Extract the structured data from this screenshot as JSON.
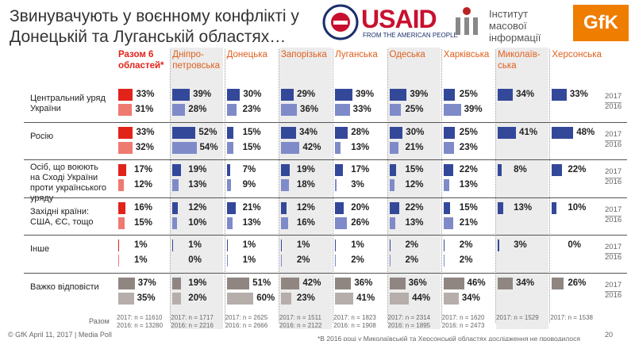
{
  "header": {
    "title": "Звинувачують у воєнному конфлікті у Донецькій та Луганській областях…",
    "usaid": "USAID",
    "usaid_tagline": "FROM THE AMERICAN PEOPLE",
    "imi": "Інститут масової інформації",
    "gfk": "GfK"
  },
  "colors": {
    "total": [
      "#e2231a",
      "#ef7a70"
    ],
    "region": [
      "#34489a",
      "#7f8bc9"
    ],
    "neutral": [
      "#8f8682",
      "#b5aeaa"
    ]
  },
  "years": [
    "2017",
    "2016"
  ],
  "sample_label": "Разом",
  "columns": [
    {
      "name": "Разом 6 областей*",
      "n_2017": "2017: n = 11610",
      "n_2016": "2016: n = 13280"
    },
    {
      "name": "Дніпро-петровська",
      "n_2017": "2017: n = 1717",
      "n_2016": "2016: n = 2216"
    },
    {
      "name": "Донецька",
      "n_2017": "2017: n = 2625",
      "n_2016": "2016: n = 2666"
    },
    {
      "name": "Запорізька",
      "n_2017": "2017: n = 1511",
      "n_2016": "2016: n = 2122"
    },
    {
      "name": "Луганська",
      "n_2017": "2017: n = 1823",
      "n_2016": "2016: n = 1908"
    },
    {
      "name": "Одеська",
      "n_2017": "2017: n = 2314",
      "n_2016": "2016: n = 1895"
    },
    {
      "name": "Харківська",
      "n_2017": "2017: n = 1620",
      "n_2016": "2016: n = 2473"
    },
    {
      "name": "Миколаїв-ська",
      "n_2017": "2017: n = 1529",
      "n_2016": null
    },
    {
      "name": "Херсонська",
      "n_2017": "2017: n = 1538",
      "n_2016": null
    }
  ],
  "rows": [
    {
      "label": "Центральний уряд України",
      "neutral": false,
      "v2017": [
        33,
        39,
        30,
        29,
        39,
        39,
        25,
        34,
        33
      ],
      "l2017": [
        "33%",
        "39%",
        "30%",
        "29%",
        "39%",
        "39%",
        "25%",
        "34%",
        "33%"
      ],
      "v2016": [
        31,
        28,
        23,
        36,
        33,
        25,
        39,
        null,
        null
      ],
      "l2016": [
        "31%",
        "28%",
        "23%",
        "36%",
        "33%",
        "25%",
        "39%",
        null,
        null
      ]
    },
    {
      "label": "Росію",
      "neutral": false,
      "v2017": [
        33,
        52,
        15,
        34,
        28,
        30,
        25,
        41,
        48
      ],
      "l2017": [
        "33%",
        "52%",
        "15%",
        "34%",
        "28%",
        "30%",
        "25%",
        "41%",
        "48%"
      ],
      "v2016": [
        32,
        54,
        15,
        42,
        13,
        21,
        23,
        null,
        null
      ],
      "l2016": [
        "32%",
        "54%",
        "15%",
        "42%",
        "13%",
        "21%",
        "23%",
        null,
        null
      ]
    },
    {
      "label": "Осіб, що воюють на Сході України проти українського уряду",
      "neutral": false,
      "v2017": [
        17,
        19,
        7,
        19,
        17,
        15,
        22,
        8,
        22
      ],
      "l2017": [
        "17%",
        "19%",
        "7%",
        "19%",
        "17%",
        "15%",
        "22%",
        "8%",
        "22%"
      ],
      "v2016": [
        12,
        13,
        9,
        18,
        3,
        12,
        13,
        null,
        null
      ],
      "l2016": [
        "12%",
        "13%",
        "9%",
        "18%",
        "3%",
        "12%",
        "13%",
        null,
        null
      ]
    },
    {
      "label": "Західні країни: США, ЄС, тощо",
      "neutral": false,
      "v2017": [
        16,
        12,
        21,
        12,
        20,
        22,
        15,
        13,
        10
      ],
      "l2017": [
        "16%",
        "12%",
        "21%",
        "12%",
        "20%",
        "22%",
        "15%",
        "13%",
        "10%"
      ],
      "v2016": [
        15,
        10,
        13,
        16,
        26,
        13,
        21,
        null,
        null
      ],
      "l2016": [
        "15%",
        "10%",
        "13%",
        "16%",
        "26%",
        "13%",
        "21%",
        null,
        null
      ]
    },
    {
      "label": "Інше",
      "neutral": false,
      "v2017": [
        1,
        1,
        1,
        1,
        1,
        2,
        2,
        3,
        0
      ],
      "l2017": [
        "1%",
        "1%",
        "1%",
        "1%",
        "1%",
        "2%",
        "2%",
        "3%",
        "0%"
      ],
      "v2016": [
        1,
        0,
        1,
        2,
        2,
        2,
        2,
        null,
        null
      ],
      "l2016": [
        "1%",
        "0%",
        "1%",
        "2%",
        "2%",
        "2%",
        "2%",
        null,
        null
      ]
    },
    {
      "label": "Важко відповісти",
      "neutral": true,
      "v2017": [
        37,
        19,
        51,
        42,
        36,
        36,
        46,
        34,
        26
      ],
      "l2017": [
        "37%",
        "19%",
        "51%",
        "42%",
        "36%",
        "36%",
        "46%",
        "34%",
        "26%"
      ],
      "v2016": [
        35,
        20,
        60,
        23,
        41,
        44,
        34,
        null,
        null
      ],
      "l2016": [
        "35%",
        "20%",
        "60%",
        "23%",
        "41%",
        "44%",
        "34%",
        null,
        null
      ]
    }
  ],
  "footer": {
    "source": "© GfK April 11, 2017 | Media Poll",
    "note": "*В 2016 році у Миколаївській та Херсонській областях дослідження не проводилося",
    "page": "20"
  }
}
